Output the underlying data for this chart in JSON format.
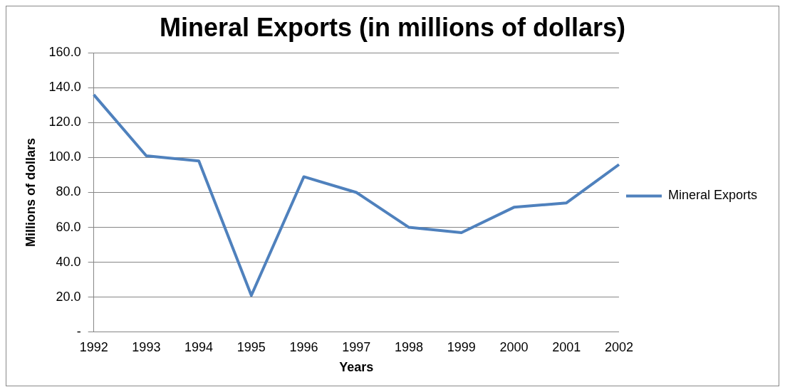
{
  "chart_data": {
    "type": "line",
    "title": "Mineral Exports (in millions of dollars)",
    "xlabel": "Years",
    "ylabel": "Millions of dollars",
    "categories": [
      "1992",
      "1993",
      "1994",
      "1995",
      "1996",
      "1997",
      "1998",
      "1999",
      "2000",
      "2001",
      "2002"
    ],
    "series": [
      {
        "name": "Mineral Exports",
        "color": "#4f81bd",
        "values": [
          136,
          101,
          98,
          21,
          89,
          80,
          60,
          57,
          71.5,
          74,
          96
        ]
      }
    ],
    "ylim": [
      0,
      160
    ],
    "yticks": [
      {
        "value": 0,
        "label": "-"
      },
      {
        "value": 20,
        "label": "20.0"
      },
      {
        "value": 40,
        "label": "40.0"
      },
      {
        "value": 60,
        "label": "60.0"
      },
      {
        "value": 80,
        "label": "80.0"
      },
      {
        "value": 100,
        "label": "100.0"
      },
      {
        "value": 120,
        "label": "120.0"
      },
      {
        "value": 140,
        "label": "140.0"
      },
      {
        "value": 160,
        "label": "160.0"
      }
    ],
    "grid": "y",
    "legend": "right",
    "marker": "none",
    "line_style": "solid"
  }
}
